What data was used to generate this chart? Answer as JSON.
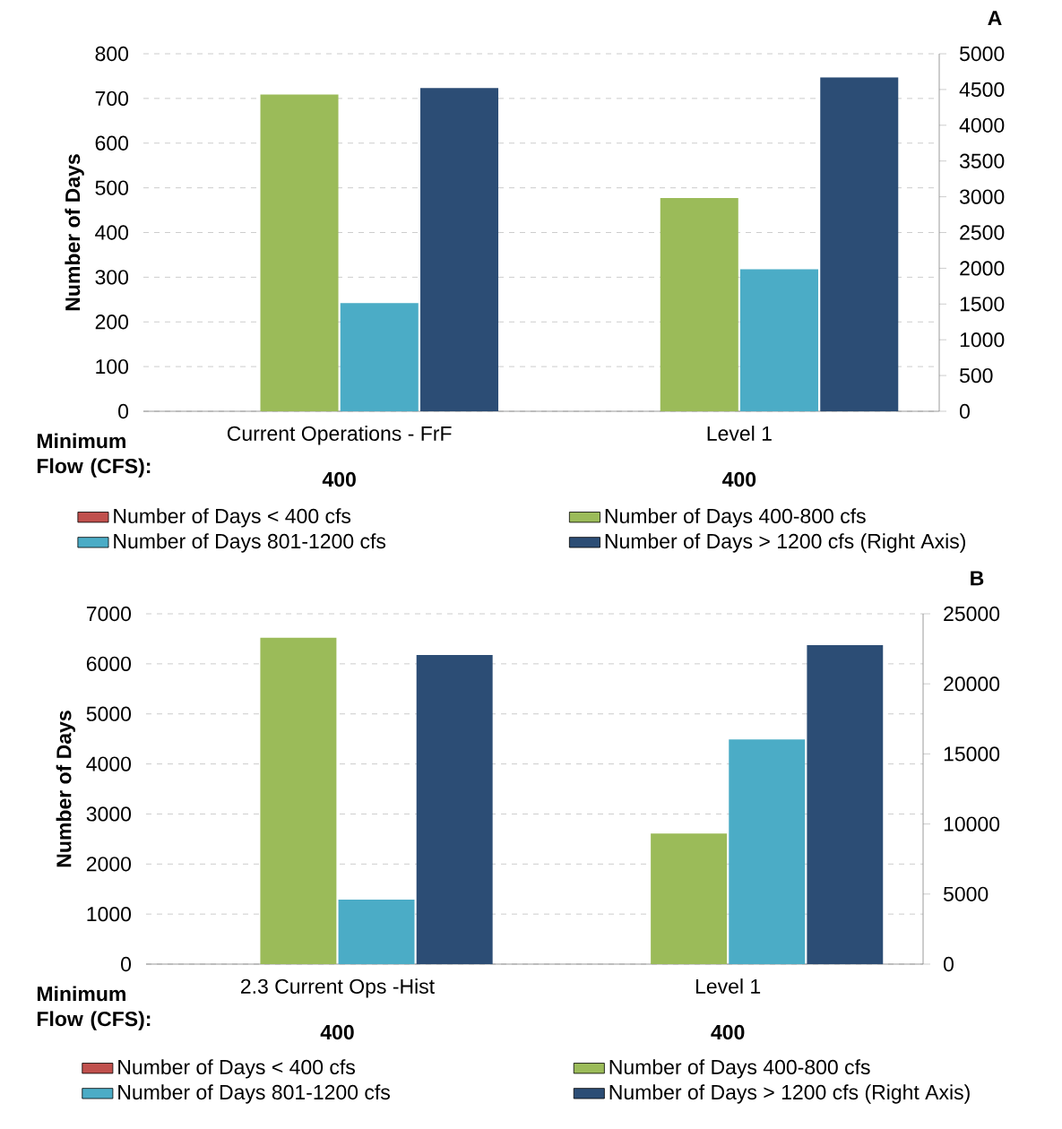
{
  "chart_data": [
    {
      "type": "bar",
      "title": "A",
      "ylabel": "Number of Days",
      "categories": [
        "Current Operations - FrF",
        "Level 1"
      ],
      "series": [
        {
          "name": "Number of Days < 400 cfs",
          "color": "#c0504d",
          "values": [
            0,
            0
          ]
        },
        {
          "name": "Number of Days 400-800 cfs",
          "color": "#9bbb59",
          "values": [
            709,
            477
          ]
        },
        {
          "name": "Number of Days 801-1200 cfs",
          "color": "#4bacc6",
          "values": [
            242,
            318
          ]
        },
        {
          "name": "Number of Days > 1200 cfs (Right Axis)",
          "color": "#2c4d75",
          "values": [
            4520,
            4670
          ],
          "axis": "y2"
        }
      ],
      "ylim": [
        0,
        800
      ],
      "yticks": [
        0,
        100,
        200,
        300,
        400,
        500,
        600,
        700,
        800
      ],
      "y2lim": [
        0,
        5000
      ],
      "y2ticks": [
        0,
        500,
        1000,
        1500,
        2000,
        2500,
        3000,
        3500,
        4000,
        4500,
        5000
      ],
      "grid": "y",
      "legend": "bottom",
      "annotations": [
        "Minimum Flow (CFS):",
        "400",
        "400"
      ]
    },
    {
      "type": "bar",
      "title": "B",
      "ylabel": "Number of Days",
      "categories": [
        "2.3 Current Ops -Hist",
        "Level 1"
      ],
      "series": [
        {
          "name": "Number of Days < 400 cfs",
          "color": "#c0504d",
          "values": [
            0,
            0
          ]
        },
        {
          "name": "Number of Days 400-800 cfs",
          "color": "#9bbb59",
          "values": [
            6520,
            2610
          ]
        },
        {
          "name": "Number of Days 801-1200 cfs",
          "color": "#4bacc6",
          "values": [
            1290,
            4490
          ]
        },
        {
          "name": "Number of Days > 1200 cfs (Right Axis)",
          "color": "#2c4d75",
          "values": [
            22060,
            22760
          ],
          "axis": "y2"
        }
      ],
      "ylim": [
        0,
        7000
      ],
      "yticks": [
        0,
        1000,
        2000,
        3000,
        4000,
        5000,
        6000,
        7000
      ],
      "y2lim": [
        0,
        25000
      ],
      "y2ticks": [
        0,
        5000,
        10000,
        15000,
        20000,
        25000
      ],
      "grid": "y",
      "legend": "bottom",
      "annotations": [
        "Minimum Flow (CFS):",
        "400",
        "400"
      ]
    }
  ]
}
